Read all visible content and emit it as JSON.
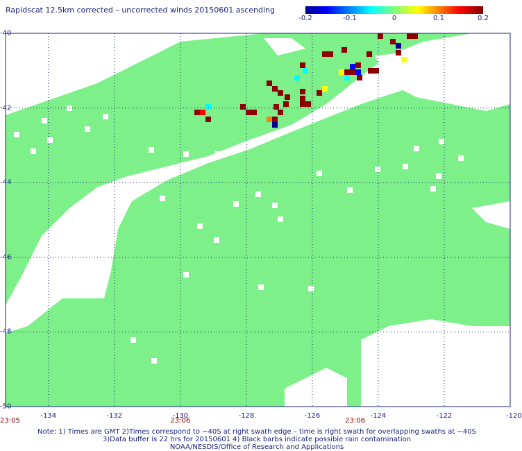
{
  "title": "Rapidscat 12.5km corrected – uncorrected winds 20150601 ascending",
  "colorbar": {
    "labels": [
      "-0.2",
      "-0.1",
      "0",
      "0.1",
      "0.2"
    ],
    "min": -0.2,
    "max": 0.2
  },
  "map": {
    "lon_min": -135.3,
    "lon_max": -120,
    "lat_top": -40,
    "lat_bottom": -50,
    "x_ticks": [
      {
        "lon": -134,
        "label": "-134"
      },
      {
        "lon": -132,
        "label": "-132"
      },
      {
        "lon": -130,
        "label": "-130"
      },
      {
        "lon": -128,
        "label": "-128"
      },
      {
        "lon": -126,
        "label": "-126"
      },
      {
        "lon": -124,
        "label": "-124"
      },
      {
        "lon": -122,
        "label": "-122"
      },
      {
        "lon": -120,
        "label": "-120"
      }
    ],
    "y_ticks": [
      {
        "lat": -40,
        "label": "-40"
      },
      {
        "lat": -42,
        "label": "-42"
      },
      {
        "lat": -44,
        "label": "-44"
      },
      {
        "lat": -46,
        "label": "-46"
      },
      {
        "lat": -48,
        "label": "-48"
      },
      {
        "lat": -50,
        "label": "-50"
      }
    ],
    "background_value_color": "#7ef08a",
    "times": [
      {
        "lon": -135.3,
        "label": "23:05"
      },
      {
        "lon": -130,
        "label": "23:06"
      },
      {
        "lon": -124.7,
        "label": "23:06"
      }
    ]
  },
  "notes": [
    "Note: 1) Times are GMT 2)Times correspond to −40S at right swath edge – time is right swath for overlapping swaths at −40S",
    "3)Data buffer is 22 hrs for 20150601 4) Black barbs indicate possible rain contamination",
    "NOAA/NESDIS/Office of Research and Applications"
  ]
}
